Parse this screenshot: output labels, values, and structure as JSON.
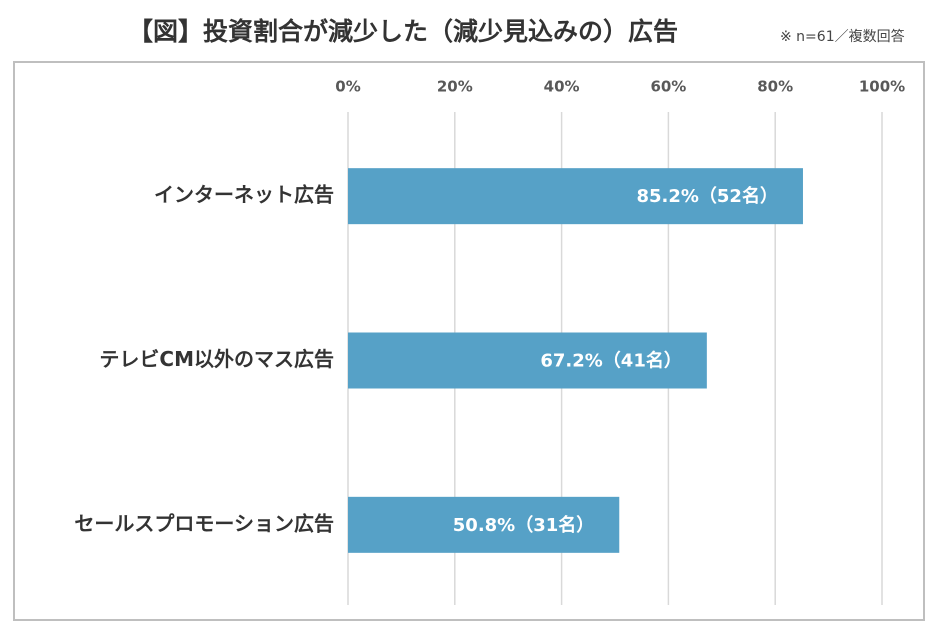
{
  "chart_data": {
    "type": "bar",
    "orientation": "horizontal",
    "title": "【図】投資割合が減少した（減少見込みの）広告",
    "note": "※ n=61／複数回答",
    "categories": [
      "インターネット広告",
      "テレビCM以外のマス広告",
      "セールスプロモーション広告"
    ],
    "values": [
      85.2,
      67.2,
      50.8
    ],
    "value_labels": [
      "85.2%（52名）",
      "67.2%（41名）",
      "50.8%（31名）"
    ],
    "color": "#56a1c7",
    "xlim": [
      0,
      100
    ],
    "xticks": [
      {
        "value": 0,
        "label": "0%"
      },
      {
        "value": 20,
        "label": "20%"
      },
      {
        "value": 40,
        "label": "40%"
      },
      {
        "value": 60,
        "label": "60%"
      },
      {
        "value": 80,
        "label": "80%"
      },
      {
        "value": 100,
        "label": "100%"
      }
    ],
    "grid": true
  }
}
